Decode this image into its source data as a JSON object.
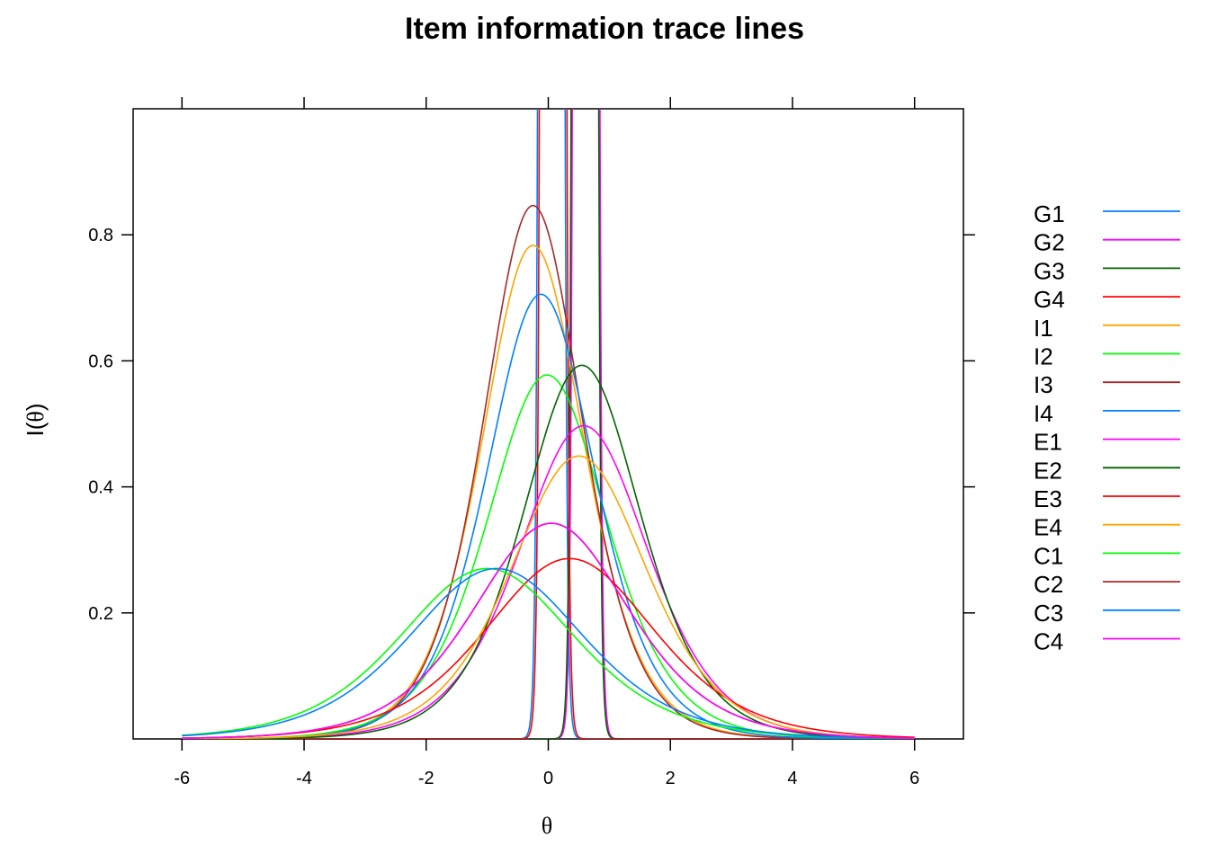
{
  "chart_data": {
    "type": "line",
    "title": "Item information trace lines",
    "xlabel": "θ",
    "ylabel_prefix": "I(",
    "ylabel_symbol": "θ",
    "ylabel_suffix": ")",
    "xlim": [
      -6.8,
      6.8
    ],
    "ylim": [
      0,
      1
    ],
    "x_ticks": [
      -6,
      -4,
      -2,
      0,
      2,
      4,
      6
    ],
    "x_tick_labels": [
      "-6",
      "-4",
      "-2",
      "0",
      "2",
      "4",
      "6"
    ],
    "y_ticks": [
      0.2,
      0.4,
      0.6,
      0.8
    ],
    "y_tick_labels": [
      "0.2",
      "0.4",
      "0.6",
      "0.8"
    ],
    "grid": false,
    "legend_position": "right",
    "series": [
      {
        "name": "G1",
        "color": "#0080ff",
        "a": 30,
        "b": 0.05
      },
      {
        "name": "G2",
        "color": "#ff00ff",
        "a": 30,
        "b": 0.62
      },
      {
        "name": "G3",
        "color": "#006400",
        "a": 30,
        "b": 0.6
      },
      {
        "name": "G4",
        "color": "#ff0000",
        "a": 30,
        "b": 0.08
      },
      {
        "name": "I1",
        "color": "#ffa500",
        "a": 1.77,
        "b": -0.25
      },
      {
        "name": "I2",
        "color": "#00ff00",
        "a": 1.52,
        "b": -0.02
      },
      {
        "name": "I3",
        "color": "#a52a2a",
        "a": 1.84,
        "b": -0.25
      },
      {
        "name": "I4",
        "color": "#0080ff",
        "a": 1.68,
        "b": -0.12
      },
      {
        "name": "E1",
        "color": "#ff00ff",
        "a": 1.41,
        "b": 0.58
      },
      {
        "name": "E2",
        "color": "#006400",
        "a": 1.54,
        "b": 0.55
      },
      {
        "name": "E3",
        "color": "#ff0000",
        "a": 1.07,
        "b": 0.35
      },
      {
        "name": "E4",
        "color": "#ffa500",
        "a": 1.34,
        "b": 0.5
      },
      {
        "name": "C1",
        "color": "#00ff00",
        "a": 1.04,
        "b": -1.0
      },
      {
        "name": "C2",
        "color": "#a52a2a",
        "a": 1.17,
        "b": 0.05
      },
      {
        "name": "C3",
        "color": "#0080ff",
        "a": 1.04,
        "b": -0.85
      },
      {
        "name": "C4",
        "color": "#ff00ff",
        "a": 1.17,
        "b": 0.05
      }
    ]
  }
}
